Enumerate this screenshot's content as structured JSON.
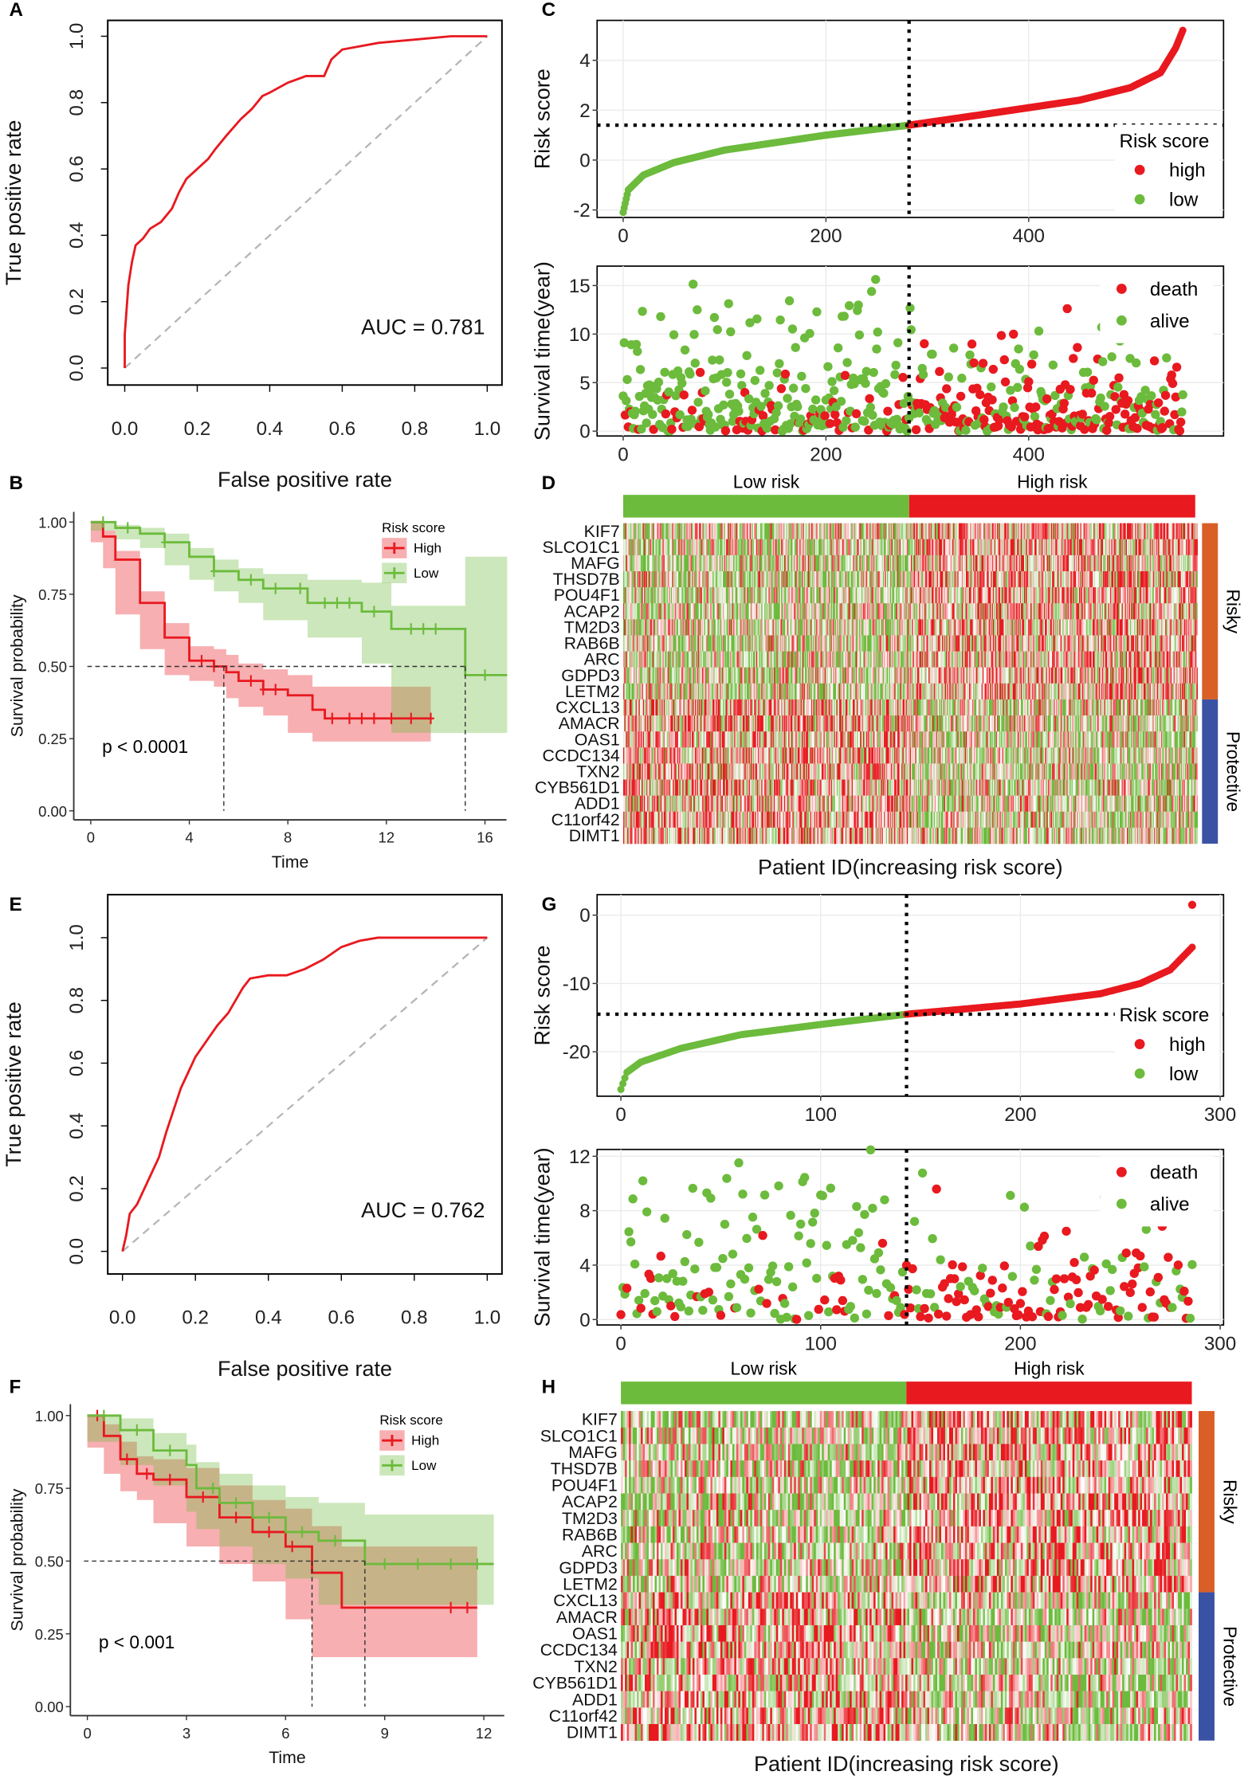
{
  "panel_labels": [
    "A",
    "B",
    "C",
    "D",
    "E",
    "F",
    "G",
    "H"
  ],
  "colors": {
    "red": "#e8191f",
    "green": "#6cbb3c",
    "risky_bar": "#d95f27",
    "protective_bar": "#3a52a3",
    "reference": "#b5b5b5"
  },
  "chart_data": [
    {
      "panel": "A",
      "type": "line",
      "xlabel": "False positive rate",
      "ylabel": "True positive rate",
      "xlim": [
        0,
        1
      ],
      "ylim": [
        0,
        1
      ],
      "xticks": [
        "0.0",
        "0.2",
        "0.4",
        "0.6",
        "0.8",
        "1.0"
      ],
      "yticks": [
        "0.0",
        "0.2",
        "0.4",
        "0.6",
        "0.8",
        "1.0"
      ],
      "annotation": "AUC =  0.781",
      "reference_line": "diagonal dashed",
      "series": [
        {
          "x": [
            0,
            0,
            0.01,
            0.02,
            0.03,
            0.05,
            0.07,
            0.1,
            0.13,
            0.15,
            0.17,
            0.2,
            0.23,
            0.25,
            0.28,
            0.32,
            0.35,
            0.38,
            0.4,
            0.45,
            0.5,
            0.55,
            0.57,
            0.6,
            0.7,
            0.8,
            0.9,
            1
          ],
          "y": [
            0,
            0.1,
            0.25,
            0.32,
            0.37,
            0.39,
            0.42,
            0.44,
            0.48,
            0.53,
            0.57,
            0.6,
            0.63,
            0.66,
            0.7,
            0.75,
            0.78,
            0.82,
            0.83,
            0.86,
            0.88,
            0.88,
            0.93,
            0.96,
            0.98,
            0.99,
            1,
            1
          ]
        }
      ]
    },
    {
      "panel": "B",
      "type": "line",
      "xlabel": "Time",
      "ylabel": "Survival probability",
      "xlim": [
        0,
        17
      ],
      "ylim": [
        0,
        1
      ],
      "xticks": [
        "0",
        "4",
        "8",
        "12",
        "16"
      ],
      "xtick_values": [
        0,
        4,
        8,
        12,
        16
      ],
      "yticks": [
        "0.00",
        "0.25",
        "0.50",
        "0.75",
        "1.00"
      ],
      "legend": {
        "title": "Risk score",
        "position": "top-right"
      },
      "annotation": "p < 0.0001",
      "median_line": 0.5,
      "series": [
        {
          "name": "High",
          "color": "#e8191f",
          "x": [
            0,
            0.5,
            1,
            2,
            3,
            4,
            5,
            5.5,
            6,
            7,
            8,
            9,
            9.5,
            13.8
          ],
          "y": [
            1,
            0.95,
            0.87,
            0.72,
            0.6,
            0.52,
            0.5,
            0.48,
            0.45,
            0.42,
            0.4,
            0.35,
            0.32,
            0.32
          ],
          "ci_lower": [
            1,
            0.93,
            0.84,
            0.68,
            0.56,
            0.47,
            0.45,
            0.43,
            0.39,
            0.36,
            0.33,
            0.27,
            0.24,
            0.24
          ],
          "ci_upper": [
            1,
            0.97,
            0.9,
            0.76,
            0.65,
            0.57,
            0.56,
            0.54,
            0.51,
            0.49,
            0.47,
            0.43,
            0.43,
            0.43
          ],
          "median": 5.4,
          "censor": [
            4.5,
            5,
            6.5,
            7,
            7.5,
            9.8,
            10.5,
            11,
            11.5,
            12.2,
            13,
            13.8
          ]
        },
        {
          "name": "Low",
          "color": "#6cbb3c",
          "x": [
            0,
            1,
            2,
            3,
            4,
            5,
            6,
            7,
            8.8,
            11,
            12.2,
            15.2,
            16.9
          ],
          "y": [
            1,
            0.98,
            0.96,
            0.93,
            0.88,
            0.83,
            0.8,
            0.77,
            0.72,
            0.69,
            0.63,
            0.47,
            0.47
          ],
          "ci_lower": [
            1,
            0.97,
            0.94,
            0.91,
            0.85,
            0.8,
            0.76,
            0.72,
            0.66,
            0.6,
            0.51,
            0.27,
            0.27
          ],
          "ci_upper": [
            1,
            0.99,
            0.98,
            0.96,
            0.91,
            0.87,
            0.84,
            0.82,
            0.8,
            0.79,
            0.71,
            0.88,
            0.88
          ],
          "median": 15.2,
          "censor": [
            0.5,
            1.5,
            3,
            5,
            6.5,
            7.5,
            8.5,
            9.5,
            10,
            10.5,
            11.5,
            13,
            13.5,
            14,
            16
          ]
        }
      ]
    },
    {
      "panel": "C-top",
      "type": "scatter",
      "xlabel": "",
      "ylabel": "Risk score",
      "xlim": [
        0,
        553
      ],
      "ylim": [
        -2.3,
        5.6
      ],
      "xticks": [
        "0",
        "200",
        "400"
      ],
      "xtick_values": [
        0,
        200,
        400
      ],
      "yticks": [
        "-2",
        "0",
        "2",
        "4"
      ],
      "ytick_values": [
        -2,
        0,
        2,
        4
      ],
      "grid": true,
      "cutoff": {
        "index": 282,
        "score": 1.4
      },
      "legend": {
        "title": "Risk score",
        "items": [
          "high",
          "low"
        ],
        "position": "right"
      },
      "curve": {
        "index": [
          0,
          5,
          20,
          50,
          100,
          200,
          282,
          350,
          450,
          500,
          530,
          545,
          553
        ],
        "score": [
          -2.1,
          -1.2,
          -0.6,
          -0.1,
          0.4,
          1.0,
          1.4,
          1.8,
          2.4,
          2.9,
          3.5,
          4.5,
          5.3
        ]
      }
    },
    {
      "panel": "C-bottom",
      "type": "scatter",
      "xlabel": "",
      "ylabel": "Survival time(year)",
      "xlim": [
        0,
        553
      ],
      "ylim": [
        -0.5,
        17
      ],
      "xticks": [
        "0",
        "200",
        "400"
      ],
      "xtick_values": [
        0,
        200,
        400
      ],
      "yticks": [
        "0",
        "5",
        "10",
        "15"
      ],
      "ytick_values": [
        0,
        5,
        10,
        15
      ],
      "grid": true,
      "cutoff_index": 282,
      "legend": {
        "items": [
          "death",
          "alive"
        ],
        "position": "top-right"
      }
    },
    {
      "panel": "D",
      "type": "heatmap",
      "group_labels": [
        "Low risk",
        "High risk"
      ],
      "xlabel": "Patient ID(increasing risk score)",
      "genes": [
        "KIF7",
        "SLCO1C1",
        "MAFG",
        "THSD7B",
        "POU4F1",
        "ACAP2",
        "TM2D3",
        "RAB6B",
        "ARC",
        "GDPD3",
        "LETM2",
        "CXCL13",
        "AMACR",
        "OAS1",
        "CCDC134",
        "TXN2",
        "CYB561D1",
        "ADD1",
        "C11orf42",
        "DIMT1"
      ],
      "gene_groups": [
        "Risky",
        "Protective"
      ],
      "risky_count": 11,
      "low_fraction": 0.5
    },
    {
      "panel": "E",
      "type": "line",
      "xlabel": "False positive rate",
      "ylabel": "True positive rate",
      "xlim": [
        0,
        1
      ],
      "ylim": [
        0,
        1
      ],
      "xticks": [
        "0.0",
        "0.2",
        "0.4",
        "0.6",
        "0.8",
        "1.0"
      ],
      "yticks": [
        "0.0",
        "0.2",
        "0.4",
        "0.6",
        "0.8",
        "1.0"
      ],
      "annotation": "AUC =  0.762",
      "reference_line": "diagonal dashed",
      "series": [
        {
          "x": [
            0,
            0.01,
            0.02,
            0.04,
            0.06,
            0.08,
            0.1,
            0.12,
            0.14,
            0.16,
            0.18,
            0.2,
            0.23,
            0.26,
            0.29,
            0.31,
            0.33,
            0.35,
            0.4,
            0.45,
            0.5,
            0.55,
            0.6,
            0.65,
            0.7,
            0.85,
            1
          ],
          "y": [
            0,
            0.05,
            0.12,
            0.15,
            0.2,
            0.25,
            0.3,
            0.38,
            0.45,
            0.52,
            0.57,
            0.62,
            0.67,
            0.72,
            0.76,
            0.8,
            0.84,
            0.87,
            0.88,
            0.88,
            0.9,
            0.93,
            0.97,
            0.99,
            1,
            1,
            1
          ]
        }
      ]
    },
    {
      "panel": "F",
      "type": "line",
      "xlabel": "Time",
      "ylabel": "Survival probability",
      "xlim": [
        0,
        12.5
      ],
      "ylim": [
        0,
        1
      ],
      "xticks": [
        "0",
        "3",
        "6",
        "9",
        "12"
      ],
      "xtick_values": [
        0,
        3,
        6,
        9,
        12
      ],
      "yticks": [
        "0.00",
        "0.25",
        "0.50",
        "0.75",
        "1.00"
      ],
      "legend": {
        "title": "Risk score",
        "position": "top-right"
      },
      "annotation": "p < 0.001",
      "median_line": 0.5,
      "series": [
        {
          "name": "High",
          "color": "#e8191f",
          "x": [
            0,
            0.5,
            1,
            1.5,
            2,
            3,
            4,
            5,
            6,
            6.8,
            7.7,
            11.8
          ],
          "y": [
            1,
            0.93,
            0.85,
            0.8,
            0.78,
            0.72,
            0.65,
            0.6,
            0.55,
            0.46,
            0.34,
            0.34
          ],
          "ci_lower": [
            1,
            0.89,
            0.8,
            0.74,
            0.71,
            0.63,
            0.55,
            0.49,
            0.43,
            0.3,
            0.17,
            0.17
          ],
          "ci_upper": [
            1,
            0.97,
            0.91,
            0.86,
            0.85,
            0.82,
            0.76,
            0.71,
            0.68,
            0.62,
            0.55,
            0.55
          ],
          "median": 6.8,
          "censor": [
            0.3,
            1.2,
            1.8,
            2.5,
            3.5,
            4.5,
            5.5,
            6.2,
            11,
            11.5
          ]
        },
        {
          "name": "Low",
          "color": "#6cbb3c",
          "x": [
            0,
            1,
            2,
            3,
            3.3,
            4,
            5,
            6,
            7,
            8.4,
            12.3
          ],
          "y": [
            1,
            0.95,
            0.88,
            0.83,
            0.75,
            0.7,
            0.65,
            0.6,
            0.57,
            0.49,
            0.49
          ],
          "ci_lower": [
            1,
            0.91,
            0.83,
            0.76,
            0.67,
            0.61,
            0.55,
            0.49,
            0.44,
            0.35,
            0.35
          ],
          "ci_upper": [
            1,
            0.99,
            0.94,
            0.9,
            0.84,
            0.8,
            0.76,
            0.72,
            0.7,
            0.66,
            0.66
          ],
          "median": 8.4,
          "censor": [
            0.5,
            1.5,
            2.5,
            3.8,
            4.5,
            5.5,
            6.5,
            7.5,
            9,
            10,
            11,
            11.8
          ]
        }
      ]
    },
    {
      "panel": "G-top",
      "type": "scatter",
      "xlabel": "",
      "ylabel": "Risk score",
      "xlim": [
        0,
        300
      ],
      "ylim": [
        -26.5,
        3
      ],
      "xticks": [
        "0",
        "100",
        "200",
        "300"
      ],
      "xtick_values": [
        0,
        100,
        200,
        300
      ],
      "yticks": [
        "-20",
        "-10",
        "0"
      ],
      "ytick_values": [
        -20,
        -10,
        0
      ],
      "grid": true,
      "cutoff": {
        "index": 143,
        "score": -14.5
      },
      "legend": {
        "title": "Risk score",
        "items": [
          "high",
          "low"
        ],
        "position": "right"
      },
      "curve": {
        "index": [
          0,
          3,
          10,
          30,
          60,
          100,
          143,
          200,
          240,
          260,
          275,
          285
        ],
        "score": [
          -25.5,
          -23,
          -21.5,
          -19.5,
          -17.5,
          -16,
          -14.5,
          -13,
          -11.5,
          -10,
          -8,
          -5
        ]
      },
      "outlier": {
        "index": 286,
        "score": 1.5
      }
    },
    {
      "panel": "G-bottom",
      "type": "scatter",
      "xlabel": "",
      "ylabel": "Survival time(year)",
      "xlim": [
        0,
        300
      ],
      "ylim": [
        -0.4,
        12.5
      ],
      "xticks": [
        "0",
        "100",
        "200",
        "300"
      ],
      "xtick_values": [
        0,
        100,
        200,
        300
      ],
      "yticks": [
        "0",
        "4",
        "8",
        "12"
      ],
      "ytick_values": [
        0,
        4,
        8,
        12
      ],
      "grid": true,
      "cutoff_index": 143,
      "legend": {
        "items": [
          "death",
          "alive"
        ],
        "position": "top-right"
      }
    },
    {
      "panel": "H",
      "type": "heatmap",
      "group_labels": [
        "Low risk",
        "High risk"
      ],
      "xlabel": "Patient ID(increasing risk score)",
      "genes": [
        "KIF7",
        "SLCO1C1",
        "MAFG",
        "THSD7B",
        "POU4F1",
        "ACAP2",
        "TM2D3",
        "RAB6B",
        "ARC",
        "GDPD3",
        "LETM2",
        "CXCL13",
        "AMACR",
        "OAS1",
        "CCDC134",
        "TXN2",
        "CYB561D1",
        "ADD1",
        "C11orf42",
        "DIMT1"
      ],
      "gene_groups": [
        "Risky",
        "Protective"
      ],
      "risky_count": 11,
      "low_fraction": 0.5
    }
  ]
}
